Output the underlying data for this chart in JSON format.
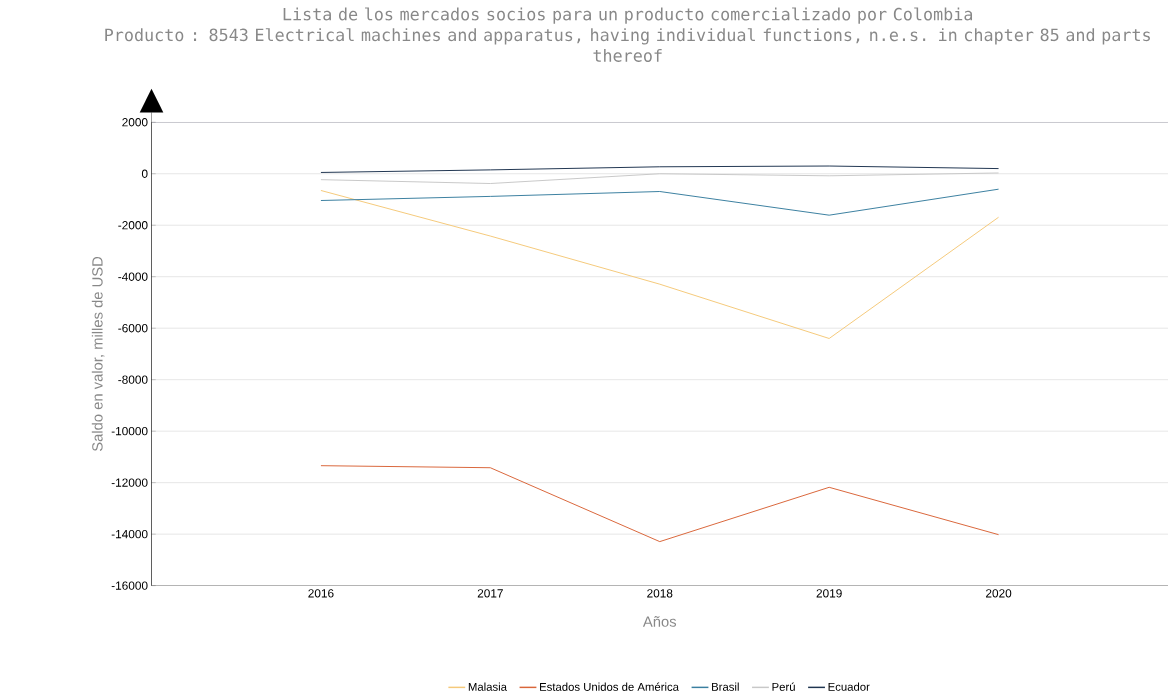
{
  "chart_data": {
    "type": "line",
    "title": "Lista de los mercados socios para un producto comercializado por Colombia",
    "subtitle": "Producto : 8543 Electrical machines and apparatus, having individual functions, n.e.s. in chapter 85 and parts thereof",
    "xlabel": "Años",
    "ylabel": "Saldo en valor, milles de USD",
    "categories": [
      "2016",
      "2017",
      "2018",
      "2019",
      "2020"
    ],
    "series": [
      {
        "name": "Malasia",
        "color": "#f5c97a",
        "values": [
          -650,
          -2420,
          -4290,
          -6400,
          -1690
        ]
      },
      {
        "name": "Estados Unidos de América",
        "color": "#d9663a",
        "values": [
          -11340,
          -11420,
          -14290,
          -12180,
          -14020
        ]
      },
      {
        "name": "Brasil",
        "color": "#3a7fa0",
        "values": [
          -1040,
          -880,
          -690,
          -1610,
          -600
        ]
      },
      {
        "name": "Perú",
        "color": "#c8c8c8",
        "values": [
          -230,
          -380,
          0,
          -80,
          30
        ]
      },
      {
        "name": "Ecuador",
        "color": "#1f3550",
        "values": [
          50,
          150,
          270,
          300,
          200
        ]
      }
    ],
    "ylim": [
      -16000,
      2000
    ],
    "yticks": [
      -16000,
      -14000,
      -12000,
      -10000,
      -8000,
      -6000,
      -4000,
      -2000,
      0,
      2000
    ],
    "grid": "y",
    "legend": "bottom",
    "marker": "none",
    "line_style": "solid"
  }
}
